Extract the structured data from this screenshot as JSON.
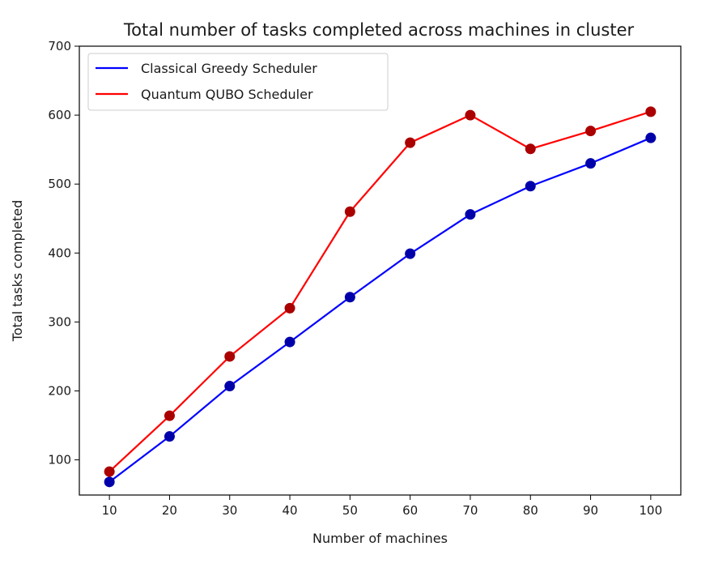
{
  "chart_data": {
    "type": "line",
    "title": "Total number of tasks completed across machines in cluster",
    "xlabel": "Number of machines",
    "ylabel": "Total tasks completed",
    "x": [
      10,
      20,
      30,
      40,
      50,
      60,
      70,
      80,
      90,
      100
    ],
    "x_ticks": [
      "10",
      "20",
      "30",
      "40",
      "50",
      "60",
      "70",
      "80",
      "90",
      "100"
    ],
    "xlim": [
      5,
      105
    ],
    "ylim": [
      49,
      700
    ],
    "y_ticks": [
      100,
      200,
      300,
      400,
      500,
      600,
      700
    ],
    "y_tick_labels": [
      "100",
      "200",
      "300",
      "400",
      "500",
      "600",
      "700"
    ],
    "grid": false,
    "legend_position": "upper-left",
    "series": [
      {
        "name": "Classical Greedy Scheduler",
        "color": "#0000ff",
        "marker_color": "#0000aa",
        "values": [
          68,
          134,
          207,
          271,
          336,
          399,
          456,
          497,
          530,
          567
        ]
      },
      {
        "name": "Quantum QUBO Scheduler",
        "color": "#ff0000",
        "marker_color": "#aa0000",
        "values": [
          83,
          164,
          250,
          320,
          460,
          560,
          600,
          551,
          577,
          605
        ]
      }
    ]
  }
}
